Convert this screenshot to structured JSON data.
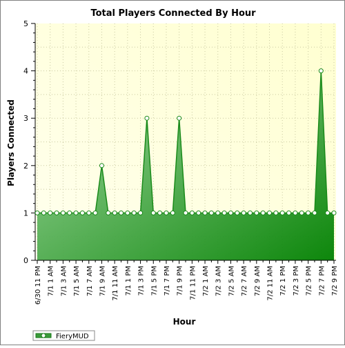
{
  "chart_data": {
    "type": "area",
    "title": "Total Players Connected By Hour",
    "xlabel": "Hour",
    "ylabel": "Players Connected",
    "ylim": [
      0,
      5
    ],
    "yticks": [
      0,
      1,
      2,
      3,
      4,
      5
    ],
    "grid": true,
    "legend_position": "bottom-left",
    "x": [
      "6/30 11 PM",
      "7/1 12 AM",
      "7/1 1 AM",
      "7/1 2 AM",
      "7/1 3 AM",
      "7/1 4 AM",
      "7/1 5 AM",
      "7/1 6 AM",
      "7/1 7 AM",
      "7/1 8 AM",
      "7/1 9 AM",
      "7/1 10 AM",
      "7/1 11 AM",
      "7/1 12 PM",
      "7/1 1 PM",
      "7/1 2 PM",
      "7/1 3 PM",
      "7/1 4 PM",
      "7/1 5 PM",
      "7/1 6 PM",
      "7/1 7 PM",
      "7/1 8 PM",
      "7/1 9 PM",
      "7/1 10 PM",
      "7/1 11 PM",
      "7/2 12 AM",
      "7/2 1 AM",
      "7/2 2 AM",
      "7/2 3 AM",
      "7/2 4 AM",
      "7/2 5 AM",
      "7/2 6 AM",
      "7/2 7 AM",
      "7/2 8 AM",
      "7/2 9 AM",
      "7/2 10 AM",
      "7/2 11 AM",
      "7/2 12 PM",
      "7/2 1 PM",
      "7/2 2 PM",
      "7/2 3 PM",
      "7/2 4 PM",
      "7/2 5 PM",
      "7/2 6 PM",
      "7/2 7 PM",
      "7/2 8 PM",
      "7/2 9 PM"
    ],
    "x_tick_labels": [
      "6/30 11 PM",
      "7/1 1 AM",
      "7/1 3 AM",
      "7/1 5 AM",
      "7/1 7 AM",
      "7/1 9 AM",
      "7/1 11 AM",
      "7/1 1 PM",
      "7/1 3 PM",
      "7/1 5 PM",
      "7/1 7 PM",
      "7/1 9 PM",
      "7/1 11 PM",
      "7/2 1 AM",
      "7/2 3 AM",
      "7/2 5 AM",
      "7/2 7 AM",
      "7/2 9 AM",
      "7/2 11 AM",
      "7/2 1 PM",
      "7/2 3 PM",
      "7/2 5 PM",
      "7/2 7 PM",
      "7/2 9 PM"
    ],
    "series": [
      {
        "name": "FieryMUD",
        "values": [
          1,
          1,
          1,
          1,
          1,
          1,
          1,
          1,
          1,
          1,
          2,
          1,
          1,
          1,
          1,
          1,
          1,
          3,
          1,
          1,
          1,
          1,
          3,
          1,
          1,
          1,
          1,
          1,
          1,
          1,
          1,
          1,
          1,
          1,
          1,
          1,
          1,
          1,
          1,
          1,
          1,
          1,
          1,
          1,
          4,
          1,
          1
        ]
      }
    ],
    "colors": {
      "line": "#1a8a1a",
      "fill_light": "#a0d8a0",
      "fill_dark": "#008000",
      "marker_fill": "#ffffff",
      "plot_bg_light": "#ffffee",
      "plot_bg_dark": "#ffffd0",
      "grid": "#c9c9a0"
    }
  }
}
